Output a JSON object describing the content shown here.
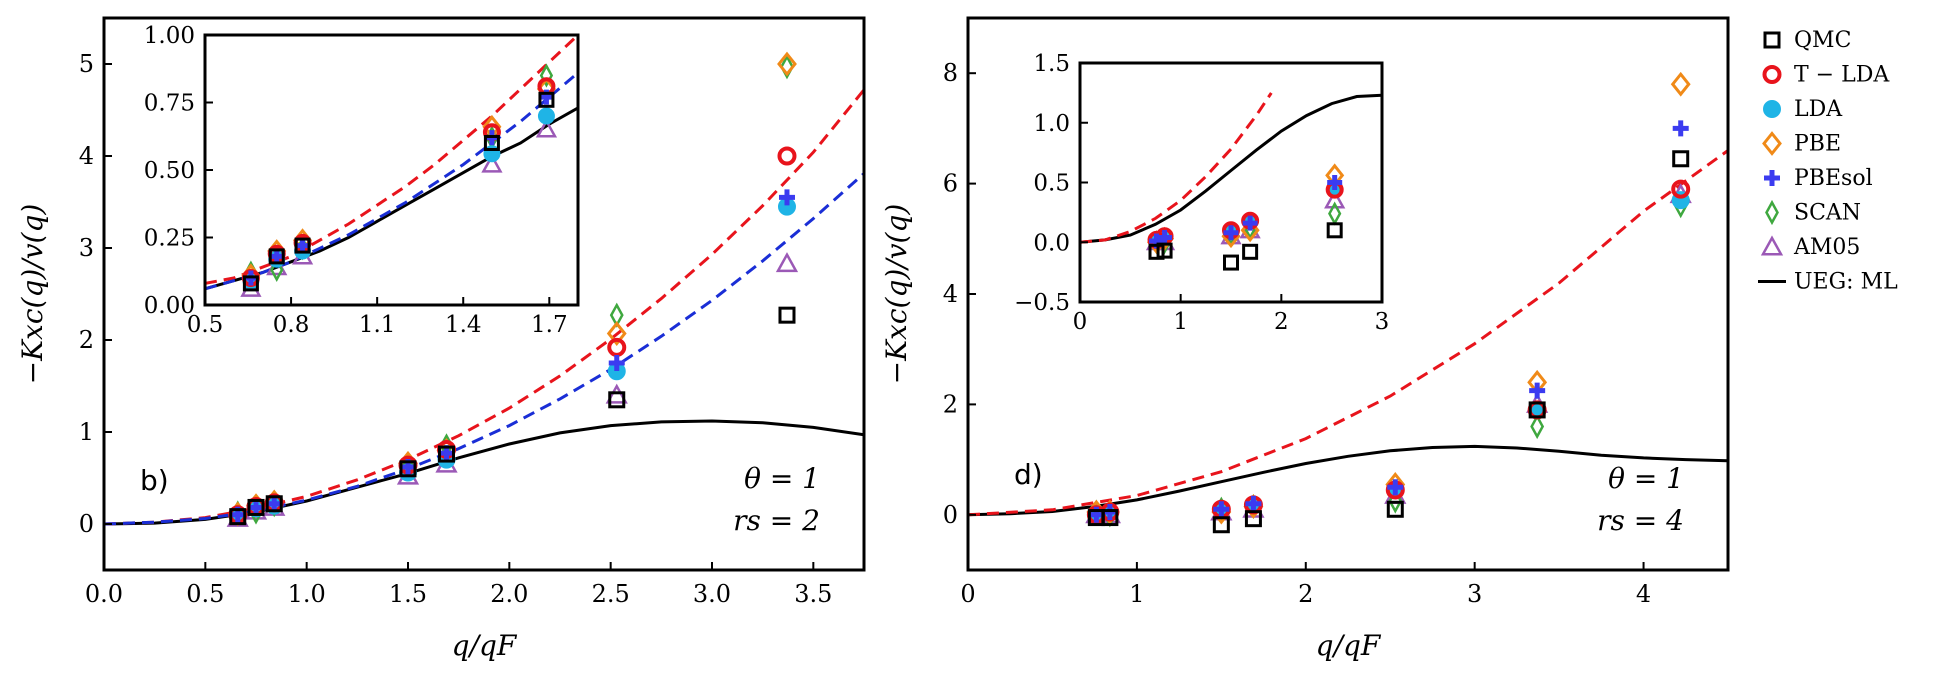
{
  "colors": {
    "QMC": "#000000",
    "T - LDA": "#e8141c",
    "LDA": "#1fb4e6",
    "PBE": "#f08a18",
    "PBEsol": "#3b3bf0",
    "SCAN": "#3fa83f",
    "AM05": "#9b59b6",
    "UEG: ML": "#000000",
    "red_dash": "#e8141c",
    "blue_dash": "#1a2ed6"
  },
  "legend": {
    "items": [
      {
        "label": "QMC",
        "marker": "square",
        "key": "QMC"
      },
      {
        "label": "T − LDA",
        "marker": "circle",
        "key": "T - LDA"
      },
      {
        "label": "LDA",
        "marker": "circle",
        "key": "LDA"
      },
      {
        "label": "PBE",
        "marker": "diamond",
        "key": "PBE"
      },
      {
        "label": "PBEsol",
        "marker": "plus",
        "key": "PBEsol"
      },
      {
        "label": "SCAN",
        "marker": "thin_diamond",
        "key": "SCAN"
      },
      {
        "label": "AM05",
        "marker": "triangle",
        "key": "AM05"
      },
      {
        "label": "UEG: ML",
        "marker": "line",
        "key": "UEG: ML"
      }
    ]
  },
  "chart_data": [
    {
      "id": "left-main",
      "type": "scatter",
      "panel_label": "b)",
      "annotations": [
        "θ = 1",
        "rs = 2"
      ],
      "xlabel": "q/qF",
      "ylabel": "−Kxc(q)/v(q)",
      "xlim": [
        0.0,
        3.75
      ],
      "ylim": [
        -0.5,
        5.5
      ],
      "xticks": [
        0.0,
        0.5,
        1.0,
        1.5,
        2.0,
        2.5,
        3.0,
        3.5
      ],
      "xtick_labels": [
        "0.0",
        "0.5",
        "1.0",
        "1.5",
        "2.0",
        "2.5",
        "3.0",
        "3.5"
      ],
      "yticks": [
        0,
        1,
        2,
        3,
        4,
        5
      ],
      "ytick_labels": [
        "0",
        "1",
        "2",
        "3",
        "4",
        "5"
      ],
      "series": [
        {
          "name": "QMC",
          "x": [
            0.66,
            0.75,
            0.84,
            1.5,
            1.69,
            2.53,
            3.37
          ],
          "y": [
            0.08,
            0.18,
            0.22,
            0.6,
            0.76,
            1.35,
            2.27
          ]
        },
        {
          "name": "T - LDA",
          "x": [
            0.66,
            0.75,
            0.84,
            1.5,
            1.69,
            2.53,
            3.37
          ],
          "y": [
            0.1,
            0.19,
            0.23,
            0.64,
            0.81,
            1.92,
            4.0
          ]
        },
        {
          "name": "LDA",
          "x": [
            0.66,
            0.75,
            0.84,
            1.5,
            1.69,
            2.53,
            3.37
          ],
          "y": [
            0.09,
            0.17,
            0.2,
            0.56,
            0.7,
            1.66,
            3.45
          ]
        },
        {
          "name": "PBE",
          "x": [
            0.66,
            0.75,
            0.84,
            1.5,
            1.69,
            2.53,
            3.37
          ],
          "y": [
            0.11,
            0.2,
            0.24,
            0.66,
            0.8,
            2.07,
            5.0
          ]
        },
        {
          "name": "PBEsol",
          "x": [
            0.66,
            0.75,
            0.84,
            1.5,
            1.69,
            2.53,
            3.37
          ],
          "y": [
            0.1,
            0.18,
            0.22,
            0.62,
            0.77,
            1.75,
            3.55
          ]
        },
        {
          "name": "SCAN",
          "x": [
            0.66,
            0.75,
            0.84,
            1.5,
            1.69,
            2.53,
            3.37
          ],
          "y": [
            0.12,
            0.13,
            0.21,
            0.62,
            0.85,
            2.27,
            4.97
          ]
        },
        {
          "name": "AM05",
          "x": [
            0.66,
            0.75,
            0.84,
            1.5,
            1.69,
            2.53,
            3.37
          ],
          "y": [
            0.06,
            0.14,
            0.18,
            0.52,
            0.65,
            1.4,
            2.83
          ]
        }
      ],
      "lines": [
        {
          "name": "UEG: ML",
          "x": [
            0.0,
            0.25,
            0.5,
            0.75,
            1.0,
            1.25,
            1.5,
            1.75,
            2.0,
            2.25,
            2.5,
            2.75,
            3.0,
            3.25,
            3.5,
            3.75
          ],
          "y": [
            0.0,
            0.01,
            0.05,
            0.13,
            0.25,
            0.4,
            0.55,
            0.72,
            0.87,
            0.99,
            1.07,
            1.11,
            1.12,
            1.1,
            1.05,
            0.97
          ]
        },
        {
          "name": "T - LDA fit",
          "style": "dashed",
          "x": [
            0.0,
            0.25,
            0.5,
            0.75,
            1.0,
            1.25,
            1.5,
            1.75,
            2.0,
            2.25,
            2.5,
            2.75,
            3.0,
            3.25,
            3.5,
            3.75
          ],
          "y": [
            0.0,
            0.02,
            0.07,
            0.17,
            0.3,
            0.48,
            0.7,
            0.96,
            1.26,
            1.61,
            2.01,
            2.45,
            2.93,
            3.46,
            4.04,
            4.72
          ]
        },
        {
          "name": "LDA fit",
          "style": "dashed",
          "x": [
            0.0,
            0.25,
            0.5,
            0.75,
            1.0,
            1.25,
            1.5,
            1.75,
            2.0,
            2.25,
            2.5,
            2.75,
            3.0,
            3.25,
            3.5,
            3.75
          ],
          "y": [
            0.0,
            0.02,
            0.06,
            0.14,
            0.26,
            0.41,
            0.6,
            0.82,
            1.07,
            1.36,
            1.68,
            2.04,
            2.43,
            2.86,
            3.32,
            3.81
          ]
        }
      ]
    },
    {
      "id": "left-inset",
      "type": "scatter",
      "xlim": [
        0.5,
        1.8
      ],
      "ylim": [
        0.0,
        1.0
      ],
      "xticks": [
        0.5,
        0.8,
        1.1,
        1.4,
        1.7
      ],
      "xtick_labels": [
        "0.5",
        "0.8",
        "1.1",
        "1.4",
        "1.7"
      ],
      "yticks": [
        0.0,
        0.25,
        0.5,
        0.75,
        1.0
      ],
      "ytick_labels": [
        "0.00",
        "0.25",
        "0.50",
        "0.75",
        "1.00"
      ],
      "series": [
        {
          "name": "QMC",
          "x": [
            0.66,
            0.75,
            0.84,
            1.5,
            1.69
          ],
          "y": [
            0.08,
            0.18,
            0.22,
            0.6,
            0.76
          ]
        },
        {
          "name": "T - LDA",
          "x": [
            0.66,
            0.75,
            0.84,
            1.5,
            1.69
          ],
          "y": [
            0.1,
            0.19,
            0.23,
            0.64,
            0.81
          ]
        },
        {
          "name": "LDA",
          "x": [
            0.66,
            0.75,
            0.84,
            1.5,
            1.69
          ],
          "y": [
            0.09,
            0.17,
            0.2,
            0.56,
            0.7
          ]
        },
        {
          "name": "PBE",
          "x": [
            0.66,
            0.75,
            0.84,
            1.5,
            1.69
          ],
          "y": [
            0.11,
            0.2,
            0.24,
            0.66,
            0.8
          ]
        },
        {
          "name": "PBEsol",
          "x": [
            0.66,
            0.75,
            0.84,
            1.5,
            1.69
          ],
          "y": [
            0.1,
            0.18,
            0.22,
            0.62,
            0.77
          ]
        },
        {
          "name": "SCAN",
          "x": [
            0.66,
            0.75,
            0.84,
            1.5,
            1.69
          ],
          "y": [
            0.12,
            0.13,
            0.21,
            0.62,
            0.85
          ]
        },
        {
          "name": "AM05",
          "x": [
            0.66,
            0.75,
            0.84,
            1.5,
            1.69
          ],
          "y": [
            0.06,
            0.14,
            0.18,
            0.52,
            0.65
          ]
        }
      ],
      "lines": [
        {
          "name": "UEG: ML",
          "x": [
            0.5,
            0.6,
            0.7,
            0.8,
            0.9,
            1.0,
            1.1,
            1.2,
            1.3,
            1.4,
            1.5,
            1.6,
            1.7,
            1.8
          ],
          "y": [
            0.06,
            0.09,
            0.12,
            0.16,
            0.2,
            0.25,
            0.31,
            0.37,
            0.43,
            0.49,
            0.55,
            0.6,
            0.67,
            0.73
          ]
        },
        {
          "name": "T - LDA fit",
          "style": "dashed",
          "x": [
            0.5,
            0.6,
            0.7,
            0.8,
            0.9,
            1.0,
            1.1,
            1.2,
            1.3,
            1.4,
            1.5,
            1.6,
            1.7,
            1.8
          ],
          "y": [
            0.08,
            0.1,
            0.14,
            0.18,
            0.24,
            0.3,
            0.37,
            0.44,
            0.52,
            0.61,
            0.7,
            0.8,
            0.9,
            1.0
          ]
        },
        {
          "name": "LDA fit",
          "style": "dashed",
          "x": [
            0.5,
            0.6,
            0.7,
            0.8,
            0.9,
            1.0,
            1.1,
            1.2,
            1.3,
            1.4,
            1.5,
            1.6,
            1.7,
            1.8
          ],
          "y": [
            0.06,
            0.09,
            0.12,
            0.16,
            0.21,
            0.26,
            0.32,
            0.38,
            0.45,
            0.52,
            0.6,
            0.68,
            0.77,
            0.86
          ]
        }
      ]
    },
    {
      "id": "right-main",
      "type": "scatter",
      "panel_label": "d)",
      "annotations": [
        "θ = 1",
        "rs = 4"
      ],
      "xlabel": "q/qF",
      "ylabel": "−Kxc(q)/v(q)",
      "xlim": [
        0,
        4.5
      ],
      "ylim": [
        -1,
        9
      ],
      "xticks": [
        0,
        1,
        2,
        3,
        4
      ],
      "xtick_labels": [
        "0",
        "1",
        "2",
        "3",
        "4"
      ],
      "yticks": [
        0,
        2,
        4,
        6,
        8
      ],
      "ytick_labels": [
        "0",
        "2",
        "4",
        "6",
        "8"
      ],
      "series": [
        {
          "name": "QMC",
          "x": [
            0.76,
            0.84,
            1.5,
            1.69,
            2.53,
            3.37,
            4.22
          ],
          "y": [
            -0.05,
            -0.05,
            -0.18,
            -0.07,
            0.1,
            1.9,
            6.45
          ]
        },
        {
          "name": "T - LDA",
          "x": [
            0.76,
            0.84,
            1.5,
            1.69,
            2.53,
            3.37,
            4.22
          ],
          "y": [
            0.0,
            0.05,
            0.1,
            0.18,
            0.45,
            1.9,
            5.9
          ]
        },
        {
          "name": "LDA",
          "x": [
            0.76,
            0.84,
            1.5,
            1.69,
            2.53,
            3.37,
            4.22
          ],
          "y": [
            0.0,
            0.05,
            0.1,
            0.18,
            0.45,
            1.9,
            5.7
          ]
        },
        {
          "name": "PBE",
          "x": [
            0.76,
            0.84,
            1.5,
            1.69,
            2.53,
            3.37,
            4.22
          ],
          "y": [
            0.05,
            0.05,
            0.05,
            0.15,
            0.55,
            2.4,
            7.8
          ]
        },
        {
          "name": "PBEsol",
          "x": [
            0.76,
            0.84,
            1.5,
            1.69,
            2.53,
            3.37,
            4.22
          ],
          "y": [
            0.0,
            0.05,
            0.1,
            0.2,
            0.5,
            2.25,
            7.0
          ]
        },
        {
          "name": "SCAN",
          "x": [
            0.76,
            0.84,
            1.5,
            1.69,
            2.53,
            3.37,
            4.22
          ],
          "y": [
            0.05,
            0.0,
            0.1,
            0.15,
            0.25,
            1.6,
            5.6
          ]
        },
        {
          "name": "AM05",
          "x": [
            0.76,
            0.84,
            1.5,
            1.69,
            2.53,
            3.37,
            4.22
          ],
          "y": [
            0.0,
            0.0,
            0.05,
            0.1,
            0.35,
            2.0,
            5.8
          ]
        }
      ],
      "lines": [
        {
          "name": "UEG: ML",
          "x": [
            0.0,
            0.25,
            0.5,
            0.75,
            1.0,
            1.25,
            1.5,
            1.75,
            2.0,
            2.25,
            2.5,
            2.75,
            3.0,
            3.25,
            3.5,
            3.75,
            4.0,
            4.25,
            4.5
          ],
          "y": [
            0.0,
            0.02,
            0.06,
            0.15,
            0.27,
            0.43,
            0.6,
            0.77,
            0.93,
            1.06,
            1.16,
            1.22,
            1.24,
            1.21,
            1.15,
            1.08,
            1.03,
            1.0,
            0.98
          ]
        },
        {
          "name": "T - LDA fit",
          "style": "dashed",
          "x": [
            0.0,
            0.5,
            1.0,
            1.5,
            2.0,
            2.5,
            3.0,
            3.5,
            4.0,
            4.5
          ],
          "y": [
            0.0,
            0.09,
            0.35,
            0.78,
            1.38,
            2.15,
            3.1,
            4.2,
            5.5,
            6.6
          ]
        }
      ]
    },
    {
      "id": "right-inset",
      "type": "scatter",
      "xlim": [
        0,
        3
      ],
      "ylim": [
        -0.5,
        1.5
      ],
      "xticks": [
        0,
        1,
        2,
        3
      ],
      "xtick_labels": [
        "0",
        "1",
        "2",
        "3"
      ],
      "yticks": [
        -0.5,
        0.0,
        0.5,
        1.0,
        1.5
      ],
      "ytick_labels": [
        "−0.5",
        "0.0",
        "0.5",
        "1.0",
        "1.5"
      ],
      "series": [
        {
          "name": "QMC",
          "x": [
            0.76,
            0.84,
            1.5,
            1.69,
            2.53
          ],
          "y": [
            -0.08,
            -0.07,
            -0.17,
            -0.08,
            0.1
          ]
        },
        {
          "name": "T - LDA",
          "x": [
            0.76,
            0.84,
            1.5,
            1.69,
            2.53
          ],
          "y": [
            0.02,
            0.05,
            0.1,
            0.18,
            0.44
          ]
        },
        {
          "name": "LDA",
          "x": [
            0.76,
            0.84,
            1.5,
            1.69,
            2.53
          ],
          "y": [
            0.02,
            0.05,
            0.1,
            0.18,
            0.44
          ]
        },
        {
          "name": "PBE",
          "x": [
            0.76,
            0.84,
            1.5,
            1.69,
            2.53
          ],
          "y": [
            0.0,
            0.03,
            0.05,
            0.1,
            0.56
          ]
        },
        {
          "name": "PBEsol",
          "x": [
            0.76,
            0.84,
            1.5,
            1.69,
            2.53
          ],
          "y": [
            0.01,
            0.04,
            0.08,
            0.16,
            0.5
          ]
        },
        {
          "name": "SCAN",
          "x": [
            0.76,
            0.84,
            1.5,
            1.69,
            2.53
          ],
          "y": [
            0.0,
            0.0,
            0.07,
            0.12,
            0.24
          ]
        },
        {
          "name": "AM05",
          "x": [
            0.76,
            0.84,
            1.5,
            1.69,
            2.53
          ],
          "y": [
            0.0,
            0.0,
            0.05,
            0.1,
            0.35
          ]
        }
      ],
      "lines": [
        {
          "name": "UEG: ML",
          "x": [
            0.0,
            0.25,
            0.5,
            0.75,
            1.0,
            1.25,
            1.5,
            1.75,
            2.0,
            2.25,
            2.5,
            2.75,
            3.0
          ],
          "y": [
            0.0,
            0.02,
            0.06,
            0.15,
            0.27,
            0.43,
            0.6,
            0.77,
            0.93,
            1.06,
            1.16,
            1.22,
            1.23
          ]
        },
        {
          "name": "T - LDA fit",
          "style": "dashed",
          "x": [
            0.0,
            0.25,
            0.5,
            0.75,
            1.0,
            1.25,
            1.5,
            1.75,
            1.9
          ],
          "y": [
            0.0,
            0.02,
            0.09,
            0.2,
            0.35,
            0.55,
            0.78,
            1.06,
            1.25
          ]
        }
      ]
    }
  ]
}
